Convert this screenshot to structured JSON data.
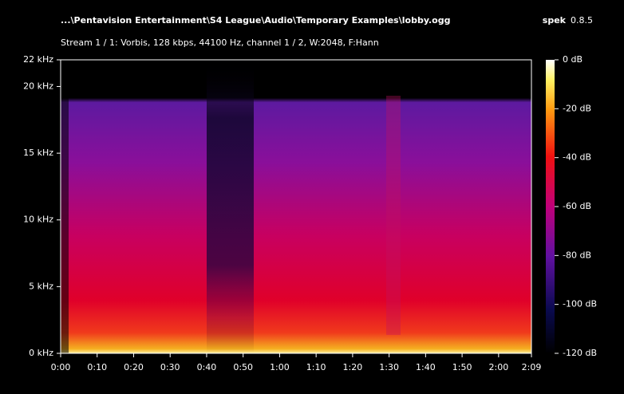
{
  "chart_data": {
    "type": "spectrogram",
    "title": "...\\Pentavision Entertainment\\S4 League\\Audio\\Temporary Examples\\lobby.ogg",
    "subtitle": "Stream 1 / 1: Vorbis, 128 kbps, 44100 Hz, channel 1 / 2, W:2048, F:Hann",
    "app_name": "spek",
    "app_version": "0.8.5",
    "xlim": [
      0,
      129
    ],
    "xticks": [
      {
        "value": 0,
        "label": "0:00"
      },
      {
        "value": 10,
        "label": "0:10"
      },
      {
        "value": 20,
        "label": "0:20"
      },
      {
        "value": 30,
        "label": "0:30"
      },
      {
        "value": 40,
        "label": "0:40"
      },
      {
        "value": 50,
        "label": "0:50"
      },
      {
        "value": 60,
        "label": "1:00"
      },
      {
        "value": 70,
        "label": "1:10"
      },
      {
        "value": 80,
        "label": "1:20"
      },
      {
        "value": 90,
        "label": "1:30"
      },
      {
        "value": 100,
        "label": "1:40"
      },
      {
        "value": 110,
        "label": "1:50"
      },
      {
        "value": 120,
        "label": "2:00"
      },
      {
        "value": 129,
        "label": "2:09"
      }
    ],
    "ylim": [
      0,
      22
    ],
    "yticks": [
      {
        "value": 0,
        "label": "0 kHz"
      },
      {
        "value": 5,
        "label": "5 kHz"
      },
      {
        "value": 10,
        "label": "10 kHz"
      },
      {
        "value": 15,
        "label": "15 kHz"
      },
      {
        "value": 20,
        "label": "20 kHz"
      },
      {
        "value": 22,
        "label": "22 kHz"
      }
    ],
    "colorbar_lim": [
      -120,
      0
    ],
    "colorbar_ticks": [
      {
        "value": 0,
        "label": "0 dB"
      },
      {
        "value": -20,
        "label": "-20 dB"
      },
      {
        "value": -40,
        "label": "-40 dB"
      },
      {
        "value": -60,
        "label": "-60 dB"
      },
      {
        "value": -80,
        "label": "-80 dB"
      },
      {
        "value": -100,
        "label": "-100 dB"
      },
      {
        "value": -120,
        "label": "-120 dB"
      }
    ]
  }
}
